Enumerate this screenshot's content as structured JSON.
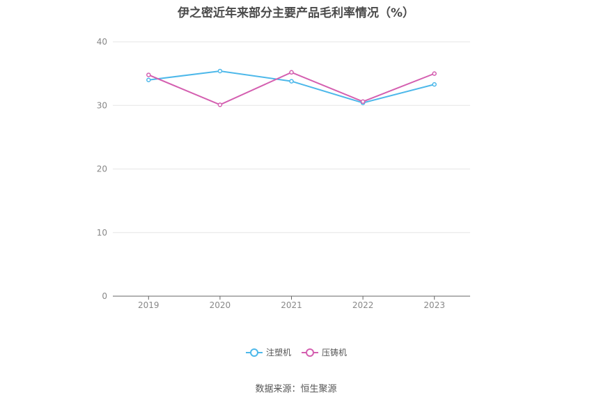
{
  "chart_data": {
    "type": "line",
    "title": "伊之密近年来部分主要产品毛利率情况（%）",
    "categories": [
      "2019",
      "2020",
      "2021",
      "2022",
      "2023"
    ],
    "series": [
      {
        "name": "注塑机",
        "color": "#4db8ea",
        "values": [
          34.0,
          35.4,
          33.8,
          30.4,
          33.3
        ]
      },
      {
        "name": "压铸机",
        "color": "#d45fb0",
        "values": [
          34.8,
          30.1,
          35.2,
          30.6,
          35.0
        ]
      }
    ],
    "ylim": [
      0,
      40
    ],
    "yticks": [
      "0",
      "10",
      "20",
      "30",
      "40"
    ],
    "grid": true,
    "legend": "bottom-center"
  },
  "source": "数据来源：恒生聚源"
}
